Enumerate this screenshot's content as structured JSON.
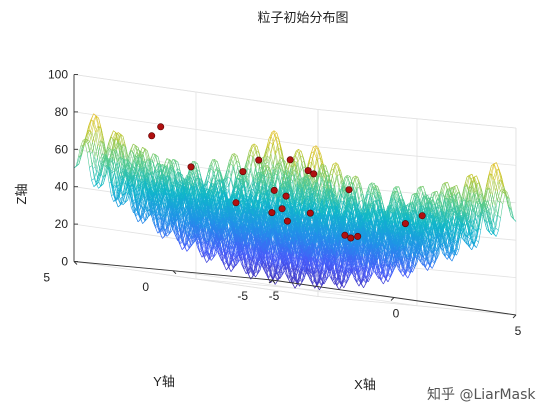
{
  "chart_data": {
    "type": "surface3d-mesh-with-scatter",
    "title": "粒子初始分布图",
    "xlabel": "X轴",
    "ylabel": "Y轴",
    "zlabel": "Z轴",
    "xlim": [
      -5,
      5
    ],
    "ylim": [
      -5,
      5
    ],
    "zlim": [
      0,
      100
    ],
    "x_ticks": [
      "-5",
      "0",
      "5"
    ],
    "y_ticks": [
      "-5",
      "0",
      "5"
    ],
    "z_ticks": [
      "0",
      "20",
      "40",
      "60",
      "80",
      "100"
    ],
    "surface": {
      "function": "Rastrigin: z = 20 + x^2 - 10cos(2πx) + y^2 - 10cos(2πy)",
      "colormap": "parula",
      "style": "mesh"
    },
    "particles": {
      "color": "#b01010",
      "points": [
        {
          "x": -4.1,
          "y": 0.2,
          "z": 57
        },
        {
          "x": -3.6,
          "y": 2.8,
          "z": 72
        },
        {
          "x": -2.5,
          "y": 3.7,
          "z": 78
        },
        {
          "x": -2.0,
          "y": -1.3,
          "z": 38
        },
        {
          "x": -2.8,
          "y": -3.0,
          "z": 47
        },
        {
          "x": -1.2,
          "y": 1.5,
          "z": 42
        },
        {
          "x": -0.8,
          "y": -0.6,
          "z": 35
        },
        {
          "x": 0.2,
          "y": 0.9,
          "z": 42
        },
        {
          "x": 0.5,
          "y": -2.2,
          "z": 30
        },
        {
          "x": 1.1,
          "y": 2.4,
          "z": 52
        },
        {
          "x": 1.6,
          "y": 1.2,
          "z": 42
        },
        {
          "x": 1.8,
          "y": -0.3,
          "z": 32
        },
        {
          "x": 2.4,
          "y": 3.2,
          "z": 70
        },
        {
          "x": 2.9,
          "y": -2.0,
          "z": 42
        },
        {
          "x": 3.3,
          "y": 0.9,
          "z": 33
        },
        {
          "x": 3.7,
          "y": 3.9,
          "z": 66
        },
        {
          "x": 4.0,
          "y": 2.2,
          "z": 58
        },
        {
          "x": 4.4,
          "y": -1.0,
          "z": 48
        },
        {
          "x": 4.5,
          "y": 4.6,
          "z": 65
        },
        {
          "x": 0.3,
          "y": 3.0,
          "z": 60
        },
        {
          "x": 2.0,
          "y": 4.3,
          "z": 68
        }
      ]
    }
  },
  "watermark": "知乎 @LiarMask"
}
